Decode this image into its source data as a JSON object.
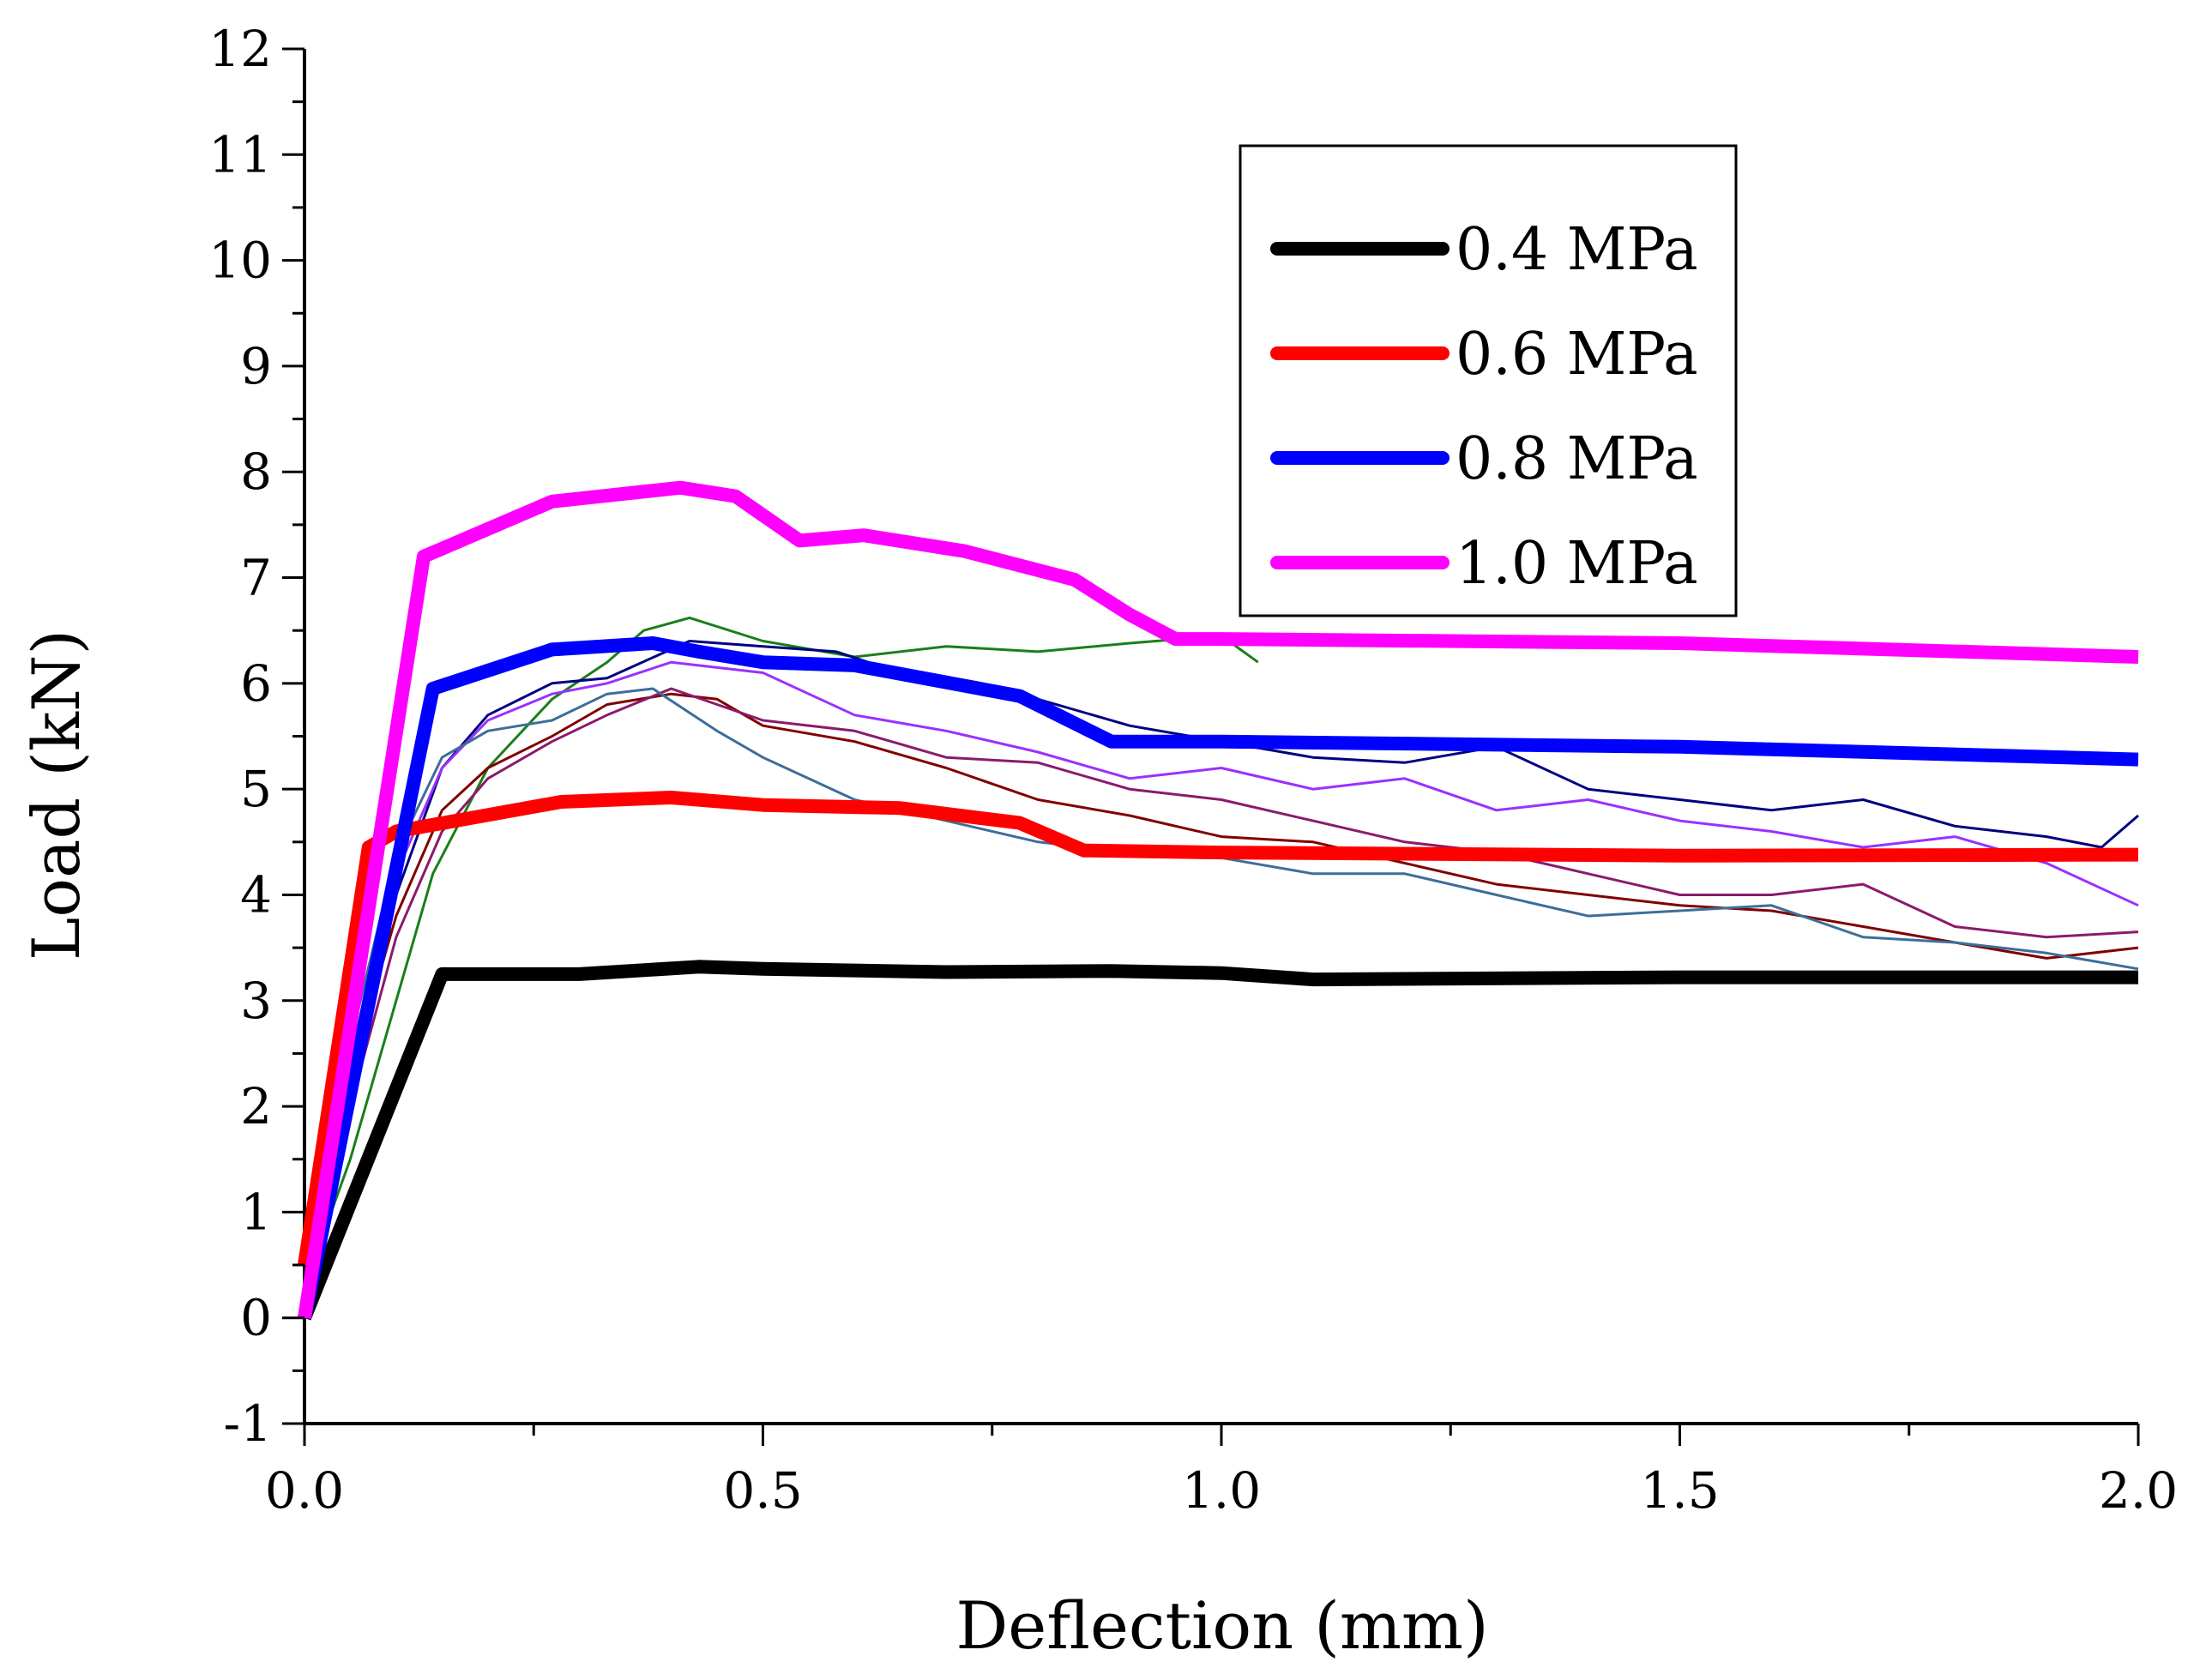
{
  "chart_data": {
    "type": "line",
    "title": "",
    "xlabel": "Deflection (mm)",
    "ylabel": "Load (kN)",
    "xlim": [
      0.0,
      2.0
    ],
    "ylim": [
      -1,
      12
    ],
    "xticks": [
      "0.0",
      "0.5",
      "1.0",
      "1.5",
      "2.0"
    ],
    "yticks": [
      "-1",
      "0",
      "1",
      "2",
      "3",
      "4",
      "5",
      "6",
      "7",
      "8",
      "9",
      "10",
      "11",
      "12"
    ],
    "grid": false,
    "legend_position": "top-right",
    "series": [
      {
        "name": "0.4 MPa",
        "color": "#000000",
        "style": "thick",
        "x": [
          0.0,
          0.15,
          0.3,
          0.43,
          0.5,
          0.7,
          0.88,
          1.0,
          1.1,
          1.5,
          2.0
        ],
        "y": [
          0.0,
          3.25,
          3.25,
          3.32,
          3.3,
          3.27,
          3.28,
          3.26,
          3.2,
          3.22,
          3.22
        ]
      },
      {
        "name": "0.6 MPa",
        "color": "#ff0000",
        "style": "thick",
        "x": [
          0.0,
          0.07,
          0.1,
          0.28,
          0.4,
          0.5,
          0.65,
          0.78,
          0.85,
          1.0,
          1.5,
          2.0
        ],
        "y": [
          0.5,
          4.45,
          4.6,
          4.88,
          4.92,
          4.85,
          4.82,
          4.68,
          4.42,
          4.4,
          4.37,
          4.38
        ]
      },
      {
        "name": "0.8 MPa",
        "color": "#0000ff",
        "style": "thick",
        "x": [
          0.0,
          0.14,
          0.27,
          0.38,
          0.43,
          0.5,
          0.6,
          0.78,
          0.88,
          1.0,
          1.5,
          2.0
        ],
        "y": [
          0.0,
          5.95,
          6.32,
          6.38,
          6.3,
          6.2,
          6.17,
          5.88,
          5.45,
          5.45,
          5.4,
          5.28
        ]
      },
      {
        "name": "1.0 MPa",
        "color": "#ff00ff",
        "style": "thick",
        "x": [
          0.0,
          0.13,
          0.27,
          0.41,
          0.47,
          0.54,
          0.61,
          0.72,
          0.84,
          0.9,
          0.95,
          1.0,
          1.5,
          2.0
        ],
        "y": [
          0.0,
          7.2,
          7.72,
          7.85,
          7.77,
          7.35,
          7.4,
          7.25,
          6.98,
          6.65,
          6.42,
          6.42,
          6.38,
          6.25
        ]
      },
      {
        "name": "",
        "color": "#1a7f1a",
        "style": "thin",
        "x": [
          0.0,
          0.05,
          0.1,
          0.14,
          0.2,
          0.27,
          0.33,
          0.37,
          0.42,
          0.5,
          0.6,
          0.7,
          0.8,
          0.9,
          1.0,
          1.04
        ],
        "y": [
          0.3,
          1.5,
          3.0,
          4.2,
          5.2,
          5.85,
          6.2,
          6.5,
          6.62,
          6.4,
          6.25,
          6.35,
          6.3,
          6.38,
          6.45,
          6.2
        ]
      },
      {
        "name": "",
        "color": "#000080",
        "style": "thin",
        "x": [
          0.0,
          0.05,
          0.1,
          0.15,
          0.2,
          0.27,
          0.33,
          0.42,
          0.5,
          0.58,
          0.65,
          0.72,
          0.8,
          0.9,
          1.0,
          1.1,
          1.2,
          1.3,
          1.4,
          1.5,
          1.6,
          1.7,
          1.8,
          1.9,
          1.96,
          2.0
        ],
        "y": [
          0.3,
          2.3,
          4.0,
          5.2,
          5.7,
          6.0,
          6.05,
          6.4,
          6.35,
          6.3,
          6.1,
          6.0,
          5.85,
          5.6,
          5.45,
          5.3,
          5.25,
          5.4,
          5.0,
          4.9,
          4.8,
          4.9,
          4.65,
          4.55,
          4.45,
          4.75
        ]
      },
      {
        "name": "",
        "color": "#9b30ff",
        "style": "thin",
        "x": [
          0.0,
          0.05,
          0.1,
          0.15,
          0.2,
          0.27,
          0.33,
          0.4,
          0.5,
          0.6,
          0.7,
          0.8,
          0.9,
          1.0,
          1.1,
          1.2,
          1.3,
          1.4,
          1.5,
          1.6,
          1.7,
          1.8,
          1.9,
          2.0
        ],
        "y": [
          0.2,
          2.4,
          4.2,
          5.2,
          5.65,
          5.9,
          6.0,
          6.2,
          6.1,
          5.7,
          5.55,
          5.35,
          5.1,
          5.2,
          5.0,
          5.1,
          4.8,
          4.9,
          4.7,
          4.6,
          4.45,
          4.55,
          4.3,
          3.9
        ]
      },
      {
        "name": "",
        "color": "#800000",
        "style": "thin",
        "x": [
          0.0,
          0.05,
          0.1,
          0.15,
          0.2,
          0.27,
          0.33,
          0.4,
          0.45,
          0.5,
          0.6,
          0.7,
          0.8,
          0.9,
          1.0,
          1.1,
          1.2,
          1.3,
          1.4,
          1.5,
          1.6,
          1.7,
          1.8,
          1.9,
          2.0
        ],
        "y": [
          0.3,
          2.3,
          3.8,
          4.8,
          5.2,
          5.5,
          5.8,
          5.9,
          5.85,
          5.6,
          5.45,
          5.2,
          4.9,
          4.75,
          4.55,
          4.5,
          4.3,
          4.1,
          4.0,
          3.9,
          3.85,
          3.7,
          3.55,
          3.4,
          3.5
        ]
      },
      {
        "name": "",
        "color": "#8b1a6b",
        "style": "thin",
        "x": [
          0.0,
          0.05,
          0.1,
          0.15,
          0.2,
          0.27,
          0.33,
          0.4,
          0.5,
          0.6,
          0.7,
          0.8,
          0.9,
          1.0,
          1.1,
          1.2,
          1.3,
          1.4,
          1.5,
          1.6,
          1.7,
          1.8,
          1.9,
          2.0
        ],
        "y": [
          0.2,
          2.0,
          3.6,
          4.6,
          5.1,
          5.45,
          5.7,
          5.95,
          5.65,
          5.55,
          5.3,
          5.25,
          5.0,
          4.9,
          4.7,
          4.5,
          4.4,
          4.2,
          4.0,
          4.0,
          4.1,
          3.7,
          3.6,
          3.65
        ]
      },
      {
        "name": "",
        "color": "#3d6e99",
        "style": "thin",
        "x": [
          0.0,
          0.05,
          0.1,
          0.15,
          0.2,
          0.27,
          0.33,
          0.38,
          0.45,
          0.5,
          0.6,
          0.7,
          0.8,
          0.9,
          1.0,
          1.1,
          1.2,
          1.3,
          1.4,
          1.5,
          1.6,
          1.7,
          1.8,
          1.9,
          2.0
        ],
        "y": [
          0.3,
          2.6,
          4.4,
          5.3,
          5.55,
          5.65,
          5.9,
          5.95,
          5.55,
          5.3,
          4.9,
          4.7,
          4.5,
          4.4,
          4.35,
          4.2,
          4.2,
          4.0,
          3.8,
          3.85,
          3.9,
          3.6,
          3.55,
          3.45,
          3.3
        ]
      }
    ]
  }
}
